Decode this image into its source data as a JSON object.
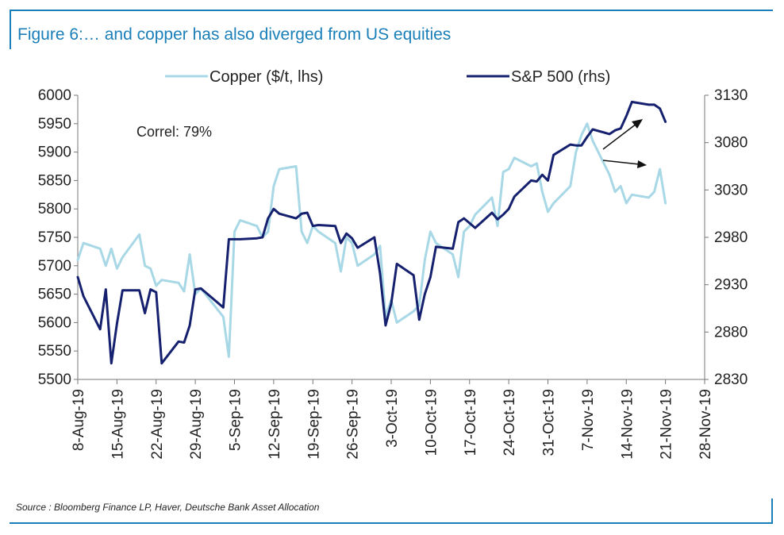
{
  "title": "Figure 6:… and copper has also diverged from US equities",
  "source": "Source : Bloomberg Finance LP, Haver, Deutsche Bank Asset Allocation",
  "annotation": "Correl: 79%",
  "colors": {
    "frame": "#1a7fb8",
    "copper": "#a8d8e6",
    "sp500": "#15206e",
    "text": "#222222"
  },
  "chart_data": {
    "type": "line",
    "legend": [
      "Copper ($/t, lhs)",
      "S&P 500 (rhs)"
    ],
    "legend_position": "top",
    "x_tick_labels": [
      "8-Aug-19",
      "15-Aug-19",
      "22-Aug-19",
      "29-Aug-19",
      "5-Sep-19",
      "12-Sep-19",
      "19-Sep-19",
      "26-Sep-19",
      "3-Oct-19",
      "10-Oct-19",
      "17-Oct-19",
      "24-Oct-19",
      "31-Oct-19",
      "7-Nov-19",
      "14-Nov-19",
      "21-Nov-19",
      "28-Nov-19"
    ],
    "x_range": [
      "2019-08-08",
      "2019-11-28"
    ],
    "y_left": {
      "label": "Copper ($/t, lhs)",
      "range": [
        5500,
        6000
      ],
      "ticks": [
        5500,
        5550,
        5600,
        5650,
        5700,
        5750,
        5800,
        5850,
        5900,
        5950,
        6000
      ]
    },
    "y_right": {
      "label": "S&P 500 (rhs)",
      "range": [
        2830,
        3130
      ],
      "ticks": [
        2830,
        2880,
        2930,
        2980,
        3030,
        3080,
        3130
      ]
    },
    "grid": false,
    "series": [
      {
        "name": "Copper ($/t, lhs)",
        "axis": "left",
        "x": [
          "2019-08-08",
          "2019-08-09",
          "2019-08-12",
          "2019-08-13",
          "2019-08-14",
          "2019-08-15",
          "2019-08-16",
          "2019-08-19",
          "2019-08-20",
          "2019-08-21",
          "2019-08-22",
          "2019-08-23",
          "2019-08-26",
          "2019-08-27",
          "2019-08-28",
          "2019-08-29",
          "2019-08-30",
          "2019-09-03",
          "2019-09-04",
          "2019-09-05",
          "2019-09-06",
          "2019-09-09",
          "2019-09-10",
          "2019-09-11",
          "2019-09-12",
          "2019-09-13",
          "2019-09-16",
          "2019-09-17",
          "2019-09-18",
          "2019-09-19",
          "2019-09-20",
          "2019-09-23",
          "2019-09-24",
          "2019-09-25",
          "2019-09-26",
          "2019-09-27",
          "2019-09-30",
          "2019-10-01",
          "2019-10-02",
          "2019-10-03",
          "2019-10-04",
          "2019-10-07",
          "2019-10-08",
          "2019-10-09",
          "2019-10-10",
          "2019-10-11",
          "2019-10-14",
          "2019-10-15",
          "2019-10-16",
          "2019-10-17",
          "2019-10-18",
          "2019-10-21",
          "2019-10-22",
          "2019-10-23",
          "2019-10-24",
          "2019-10-25",
          "2019-10-28",
          "2019-10-29",
          "2019-10-30",
          "2019-10-31",
          "2019-11-01",
          "2019-11-04",
          "2019-11-05",
          "2019-11-06",
          "2019-11-07",
          "2019-11-08",
          "2019-11-11",
          "2019-11-12",
          "2019-11-13",
          "2019-11-14",
          "2019-11-15",
          "2019-11-18",
          "2019-11-19",
          "2019-11-20",
          "2019-11-21"
        ],
        "values": [
          5710,
          5740,
          5730,
          5700,
          5730,
          5695,
          5715,
          5755,
          5700,
          5695,
          5665,
          5675,
          5670,
          5655,
          5720,
          5650,
          5660,
          5610,
          5540,
          5760,
          5780,
          5770,
          5750,
          5760,
          5840,
          5870,
          5875,
          5760,
          5740,
          5770,
          5760,
          5740,
          5690,
          5750,
          5740,
          5700,
          5720,
          5735,
          5610,
          5640,
          5600,
          5620,
          5630,
          5710,
          5760,
          5740,
          5720,
          5680,
          5760,
          5770,
          5790,
          5820,
          5770,
          5865,
          5870,
          5890,
          5875,
          5880,
          5830,
          5795,
          5810,
          5840,
          5900,
          5930,
          5950,
          5920,
          5860,
          5830,
          5840,
          5810,
          5825,
          5820,
          5830,
          5870,
          5810
        ]
      },
      {
        "name": "S&P 500 (rhs)",
        "axis": "right",
        "x": [
          "2019-08-08",
          "2019-08-09",
          "2019-08-12",
          "2019-08-13",
          "2019-08-14",
          "2019-08-15",
          "2019-08-16",
          "2019-08-19",
          "2019-08-20",
          "2019-08-21",
          "2019-08-22",
          "2019-08-23",
          "2019-08-26",
          "2019-08-27",
          "2019-08-28",
          "2019-08-29",
          "2019-08-30",
          "2019-09-03",
          "2019-09-04",
          "2019-09-05",
          "2019-09-06",
          "2019-09-09",
          "2019-09-10",
          "2019-09-11",
          "2019-09-12",
          "2019-09-13",
          "2019-09-16",
          "2019-09-17",
          "2019-09-18",
          "2019-09-19",
          "2019-09-20",
          "2019-09-23",
          "2019-09-24",
          "2019-09-25",
          "2019-09-26",
          "2019-09-27",
          "2019-09-30",
          "2019-10-01",
          "2019-10-02",
          "2019-10-03",
          "2019-10-04",
          "2019-10-07",
          "2019-10-08",
          "2019-10-09",
          "2019-10-10",
          "2019-10-11",
          "2019-10-14",
          "2019-10-15",
          "2019-10-16",
          "2019-10-17",
          "2019-10-18",
          "2019-10-21",
          "2019-10-22",
          "2019-10-23",
          "2019-10-24",
          "2019-10-25",
          "2019-10-28",
          "2019-10-29",
          "2019-10-30",
          "2019-10-31",
          "2019-11-01",
          "2019-11-04",
          "2019-11-05",
          "2019-11-06",
          "2019-11-07",
          "2019-11-08",
          "2019-11-11",
          "2019-11-12",
          "2019-11-13",
          "2019-11-14",
          "2019-11-15",
          "2019-11-18",
          "2019-11-19",
          "2019-11-20",
          "2019-11-21"
        ],
        "values": [
          2938,
          2918,
          2883,
          2925,
          2847,
          2889,
          2924,
          2924,
          2900,
          2925,
          2922,
          2847,
          2870,
          2869,
          2887,
          2925,
          2926,
          2906,
          2978,
          2978,
          2978,
          2979,
          2980,
          3000,
          3010,
          3005,
          3000,
          3005,
          3006,
          2992,
          2993,
          2992,
          2974,
          2984,
          2979,
          2969,
          2980,
          2942,
          2887,
          2910,
          2952,
          2940,
          2893,
          2920,
          2938,
          2970,
          2968,
          2996,
          3000,
          2995,
          2990,
          3006,
          2999,
          3004,
          3010,
          3023,
          3040,
          3039,
          3046,
          3040,
          3067,
          3078,
          3077,
          3077,
          3086,
          3094,
          3089,
          3093,
          3095,
          3108,
          3123,
          3120,
          3120,
          3116,
          3102
        ]
      }
    ]
  }
}
